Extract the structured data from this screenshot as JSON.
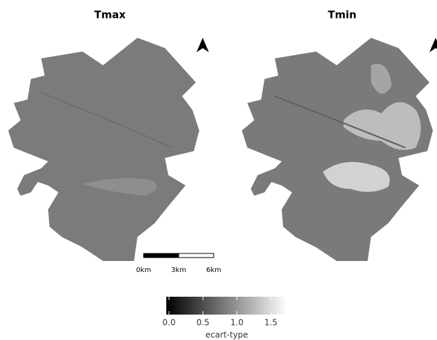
{
  "panels": [
    {
      "title": "Tmax"
    },
    {
      "title": "Tmin"
    }
  ],
  "scale_bar": {
    "ticks": [
      {
        "value": 0,
        "label": "0km"
      },
      {
        "value": 3,
        "label": "3km"
      },
      {
        "value": 6,
        "label": "6km"
      }
    ]
  },
  "colorbar": {
    "title": "ecart-type",
    "lim": [
      -0.04,
      1.74
    ],
    "colors": [
      "#000000",
      "#ffffff"
    ],
    "ticks": [
      {
        "value": 0,
        "label": "0.0"
      },
      {
        "value": 0.5,
        "label": "0.5"
      },
      {
        "value": 1,
        "label": "1.0"
      },
      {
        "value": 1.5,
        "label": "1.5"
      }
    ]
  }
}
